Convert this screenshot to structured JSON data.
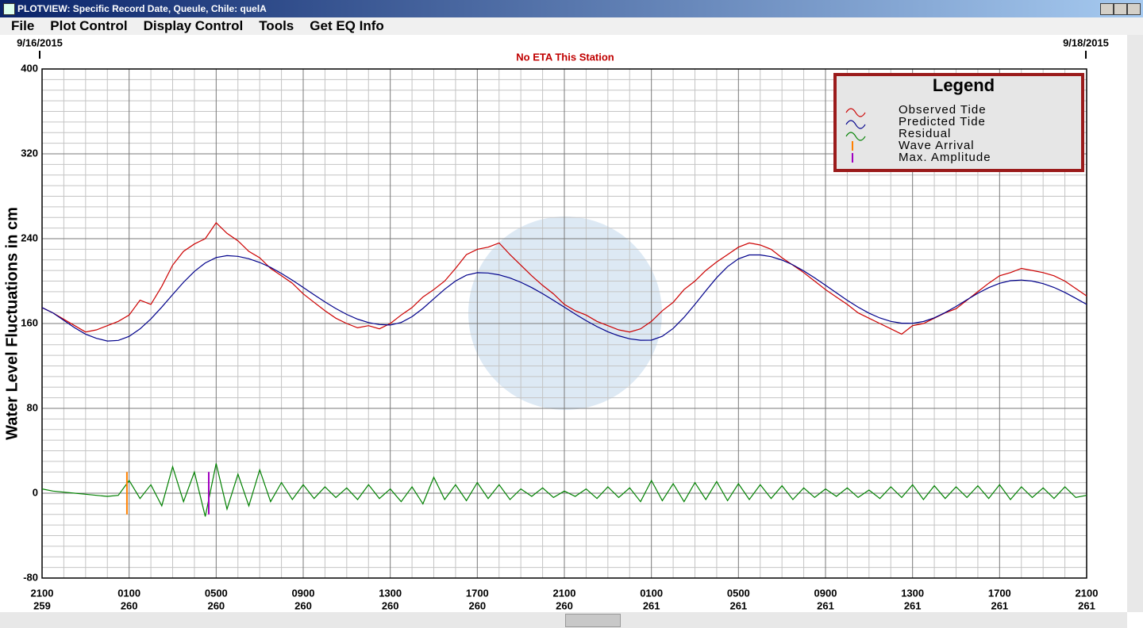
{
  "window": {
    "title": "PLOTVIEW: Specific Record Date, Queule, Chile: quelA",
    "menu": [
      "File",
      "Plot Control",
      "Display Control",
      "Tools",
      "Get EQ Info"
    ]
  },
  "chart_data": {
    "type": "line",
    "start_date": "9/16/2015",
    "end_date": "9/18/2015",
    "subtitle": "No ETA This Station",
    "y_label": "Water Level Fluctuations in cm",
    "legend_title": "Legend",
    "legend_position": "upper right",
    "grid": true,
    "xlim": [
      0,
      48
    ],
    "xticks": [
      {
        "value": 0,
        "label": [
          "2100",
          "259"
        ]
      },
      {
        "value": 4,
        "label": [
          "0100",
          "260"
        ]
      },
      {
        "value": 8,
        "label": [
          "0500",
          "260"
        ]
      },
      {
        "value": 12,
        "label": [
          "0900",
          "260"
        ]
      },
      {
        "value": 16,
        "label": [
          "1300",
          "260"
        ]
      },
      {
        "value": 20,
        "label": [
          "1700",
          "260"
        ]
      },
      {
        "value": 24,
        "label": [
          "2100",
          "260"
        ]
      },
      {
        "value": 28,
        "label": [
          "0100",
          "261"
        ]
      },
      {
        "value": 32,
        "label": [
          "0500",
          "261"
        ]
      },
      {
        "value": 36,
        "label": [
          "0900",
          "261"
        ]
      },
      {
        "value": 40,
        "label": [
          "1300",
          "261"
        ]
      },
      {
        "value": 44,
        "label": [
          "1700",
          "261"
        ]
      },
      {
        "value": 48,
        "label": [
          "2100",
          "261"
        ]
      }
    ],
    "ylim": [
      -80,
      400
    ],
    "yticks": [
      -80,
      0,
      80,
      160,
      240,
      320,
      400
    ],
    "x": [
      0,
      0.5,
      1,
      1.5,
      2,
      2.5,
      3,
      3.5,
      4,
      4.5,
      5,
      5.5,
      6,
      6.5,
      7,
      7.5,
      8,
      8.5,
      9,
      9.5,
      10,
      10.5,
      11,
      11.5,
      12,
      12.5,
      13,
      13.5,
      14,
      14.5,
      15,
      15.5,
      16,
      16.5,
      17,
      17.5,
      18,
      18.5,
      19,
      19.5,
      20,
      20.5,
      21,
      21.5,
      22,
      22.5,
      23,
      23.5,
      24,
      24.5,
      25,
      25.5,
      26,
      26.5,
      27,
      27.5,
      28,
      28.5,
      29,
      29.5,
      30,
      30.5,
      31,
      31.5,
      32,
      32.5,
      33,
      33.5,
      34,
      34.5,
      35,
      35.5,
      36,
      36.5,
      37,
      37.5,
      38,
      38.5,
      39,
      39.5,
      40,
      40.5,
      41,
      41.5,
      42,
      42.5,
      43,
      43.5,
      44,
      44.5,
      45,
      45.5,
      46,
      46.5,
      47,
      47.5,
      48
    ],
    "series": [
      {
        "name": "Observed Tide",
        "color": "#cc0000",
        "values": [
          175,
          170,
          164,
          158,
          152,
          154,
          158,
          162,
          168,
          182,
          178,
          195,
          215,
          228,
          235,
          240,
          255,
          245,
          238,
          228,
          222,
          212,
          205,
          198,
          188,
          180,
          172,
          165,
          160,
          156,
          158,
          155,
          160,
          168,
          175,
          185,
          192,
          200,
          212,
          225,
          230,
          232,
          236,
          225,
          215,
          205,
          196,
          188,
          178,
          172,
          168,
          162,
          158,
          154,
          152,
          155,
          162,
          172,
          180,
          192,
          200,
          210,
          218,
          225,
          232,
          236,
          234,
          230,
          222,
          215,
          208,
          200,
          192,
          185,
          178,
          170,
          165,
          160,
          155,
          150,
          158,
          160,
          165,
          170,
          174,
          182,
          190,
          198,
          205,
          208,
          212,
          210,
          208,
          205,
          200,
          193,
          186
        ]
      },
      {
        "name": "Predicted Tide",
        "color": "#00008b",
        "values": [
          175,
          170,
          163,
          156,
          150,
          146,
          143.5,
          144.1,
          147.9,
          154.9,
          164.3,
          175.5,
          187.3,
          198.9,
          209.1,
          217.1,
          222.2,
          224,
          223.3,
          221.1,
          217.6,
          212.9,
          207.2,
          200.8,
          194,
          187.1,
          180.3,
          174.1,
          168.6,
          164.1,
          160.9,
          159,
          158.6,
          161,
          166.4,
          174.2,
          183.3,
          192.3,
          200.1,
          205.5,
          207.9,
          207.6,
          205.9,
          202.9,
          198.9,
          193.9,
          188.1,
          181.8,
          175.4,
          168.9,
          162.7,
          157.1,
          152.2,
          148.4,
          145.6,
          144.2,
          144.3,
          148,
          155.4,
          165.8,
          178,
          190.9,
          203.2,
          213.6,
          221,
          224.7,
          224.7,
          223,
          219.8,
          215.3,
          209.6,
          203.1,
          196.1,
          188.9,
          181.9,
          175.4,
          169.8,
          165.2,
          162,
          160.3,
          160.2,
          161.9,
          165.4,
          170.3,
          176.1,
          182.4,
          188.5,
          193.8,
          197.9,
          200.4,
          201,
          200,
          197.6,
          194,
          189.3,
          183.8,
          178
        ]
      },
      {
        "name": "Residual",
        "color": "#008000",
        "values": [
          4,
          2,
          1,
          0,
          -1,
          -2,
          -3,
          -2,
          12,
          -5,
          8,
          -12,
          25,
          -8,
          20,
          -22,
          28,
          -15,
          18,
          -12,
          22,
          -8,
          10,
          -6,
          8,
          -5,
          6,
          -4,
          5,
          -6,
          8,
          -5,
          4,
          -8,
          6,
          -10,
          15,
          -6,
          8,
          -7,
          10,
          -5,
          8,
          -6,
          4,
          -3,
          5,
          -4,
          2,
          -3,
          4,
          -5,
          6,
          -4,
          5,
          -8,
          12,
          -7,
          9,
          -8,
          10,
          -6,
          11,
          -7,
          9,
          -6,
          8,
          -5,
          7,
          -6,
          5,
          -4,
          4,
          -3,
          5,
          -4,
          3,
          -5,
          6,
          -4,
          8,
          -6,
          7,
          -5,
          6,
          -4,
          7,
          -5,
          8,
          -6,
          6,
          -4,
          5,
          -5,
          6,
          -4,
          -2
        ]
      }
    ],
    "markers": [
      {
        "name": "Wave Arrival",
        "color": "#ff8000",
        "x": 3.9,
        "range": [
          -20,
          20
        ]
      },
      {
        "name": "Max. Amplitude",
        "color": "#a000c0",
        "x": 7.66,
        "range": [
          -20,
          20
        ]
      }
    ]
  }
}
